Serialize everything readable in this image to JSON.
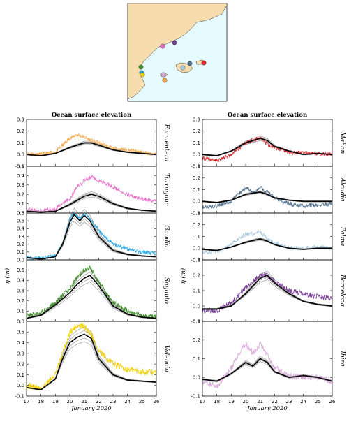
{
  "map": {
    "land_color": "#f7dcae",
    "sea_color": "#e6fbff",
    "stations": [
      {
        "name": "Formentera",
        "color": "#f5a84a"
      },
      {
        "name": "Tarragona",
        "color": "#e870c8"
      },
      {
        "name": "Gandia",
        "color": "#29a7e0"
      },
      {
        "name": "Sagunto",
        "color": "#3f8f2c"
      },
      {
        "name": "Valencia",
        "color": "#f0d000"
      },
      {
        "name": "Mahon",
        "color": "#d8242a"
      },
      {
        "name": "Alcudia",
        "color": "#52708c"
      },
      {
        "name": "Palma",
        "color": "#a8c8e0"
      },
      {
        "name": "Barcelona",
        "color": "#7a3f96"
      },
      {
        "name": "Ibiza",
        "color": "#d8a8d8"
      }
    ]
  },
  "chart_data": {
    "type": "line",
    "columns": [
      {
        "title": "Ocean surface elevation",
        "panels": [
          {
            "station": "Formentera",
            "color": "#f5a84a",
            "ylim": [
              -0.1,
              0.3
            ],
            "yticks": [
              -0.1,
              0.0,
              0.1,
              0.2,
              0.3
            ]
          },
          {
            "station": "Tarragona",
            "color": "#e870c8",
            "ylim": [
              0.0,
              0.5
            ],
            "yticks": [
              0.0,
              0.1,
              0.2,
              0.3,
              0.4,
              0.5
            ]
          },
          {
            "station": "Gandia",
            "color": "#29a7e0",
            "ylim": [
              0.0,
              0.6
            ],
            "yticks": [
              0.0,
              0.1,
              0.2,
              0.3,
              0.4,
              0.5,
              0.6
            ]
          },
          {
            "station": "Sagunto",
            "color": "#3f8f2c",
            "ylim": [
              0.0,
              0.6
            ],
            "yticks": [
              0.0,
              0.1,
              0.2,
              0.3,
              0.4,
              0.5
            ]
          },
          {
            "station": "Valencia",
            "color": "#f0d000",
            "ylim": [
              -0.1,
              0.6
            ],
            "yticks": [
              -0.1,
              0.0,
              0.1,
              0.2,
              0.3,
              0.4,
              0.5
            ]
          }
        ]
      },
      {
        "title": "Ocean surface elevation",
        "panels": [
          {
            "station": "Mahon",
            "color": "#d8242a",
            "ylim": [
              -0.1,
              0.3
            ],
            "yticks": [
              -0.1,
              0.0,
              0.1,
              0.2,
              0.3
            ]
          },
          {
            "station": "Alcudia",
            "color": "#52708c",
            "ylim": [
              -0.1,
              0.3
            ],
            "yticks": [
              -0.1,
              0.0,
              0.1,
              0.2,
              0.3
            ]
          },
          {
            "station": "Palma",
            "color": "#a8c8e0",
            "ylim": [
              -0.1,
              0.3
            ],
            "yticks": [
              -0.1,
              0.0,
              0.1,
              0.2,
              0.3
            ]
          },
          {
            "station": "Barcelona",
            "color": "#7a3f96",
            "ylim": [
              -0.1,
              0.3
            ],
            "yticks": [
              -0.1,
              0.0,
              0.1,
              0.2,
              0.3
            ]
          },
          {
            "station": "Ibiza",
            "color": "#d8a8d8",
            "ylim": [
              -0.1,
              0.3
            ],
            "yticks": [
              -0.1,
              0.0,
              0.1,
              0.2,
              0.3
            ]
          }
        ]
      }
    ],
    "x_ticks": [
      17,
      18,
      19,
      20,
      21,
      22,
      23,
      24,
      25,
      26
    ],
    "x_range": [
      17,
      26
    ],
    "xlabel": "January 2020",
    "ylabel": "η (m)",
    "series_style": {
      "observed": "station color",
      "model_ensemble": "#888888",
      "model_best": "#000000"
    },
    "curves": {
      "Formentera": {
        "obs": [
          [
            17,
            0.01
          ],
          [
            18,
            0.0
          ],
          [
            19,
            0.02
          ],
          [
            20,
            0.14
          ],
          [
            20.5,
            0.17
          ],
          [
            21,
            0.15
          ],
          [
            21.5,
            0.12
          ],
          [
            22,
            0.1
          ],
          [
            23,
            0.05
          ],
          [
            24,
            0.04
          ],
          [
            25,
            0.02
          ],
          [
            26,
            0.0
          ]
        ],
        "model": [
          [
            17,
            0.0
          ],
          [
            18,
            -0.01
          ],
          [
            19,
            0.01
          ],
          [
            20,
            0.06
          ],
          [
            21,
            0.1
          ],
          [
            21.5,
            0.1
          ],
          [
            22,
            0.08
          ],
          [
            23,
            0.04
          ],
          [
            24,
            0.02
          ],
          [
            25,
            0.01
          ],
          [
            26,
            0.0
          ]
        ]
      },
      "Tarragona": {
        "obs": [
          [
            17,
            0.04
          ],
          [
            18,
            0.02
          ],
          [
            19,
            0.05
          ],
          [
            20,
            0.15
          ],
          [
            20.5,
            0.28
          ],
          [
            21,
            0.35
          ],
          [
            21.5,
            0.39
          ],
          [
            22,
            0.35
          ],
          [
            23,
            0.28
          ],
          [
            24,
            0.2
          ],
          [
            25,
            0.15
          ],
          [
            26,
            0.13
          ]
        ],
        "model": [
          [
            17,
            0.02
          ],
          [
            18,
            0.01
          ],
          [
            19,
            0.02
          ],
          [
            20,
            0.09
          ],
          [
            21,
            0.18
          ],
          [
            21.5,
            0.2
          ],
          [
            22,
            0.18
          ],
          [
            23,
            0.1
          ],
          [
            24,
            0.05
          ],
          [
            25,
            0.03
          ],
          [
            26,
            0.02
          ]
        ]
      },
      "Gandia": {
        "obs": [
          [
            17,
            0.03
          ],
          [
            18,
            0.02
          ],
          [
            19,
            0.05
          ],
          [
            19.5,
            0.2
          ],
          [
            20,
            0.52
          ],
          [
            20.3,
            0.61
          ],
          [
            20.7,
            0.52
          ],
          [
            21,
            0.59
          ],
          [
            21.4,
            0.52
          ],
          [
            22,
            0.38
          ],
          [
            23,
            0.2
          ],
          [
            24,
            0.14
          ],
          [
            25,
            0.1
          ],
          [
            26,
            0.08
          ]
        ],
        "model": [
          [
            17,
            0.03
          ],
          [
            18,
            0.01
          ],
          [
            19,
            0.04
          ],
          [
            19.5,
            0.2
          ],
          [
            20,
            0.48
          ],
          [
            20.3,
            0.58
          ],
          [
            20.7,
            0.5
          ],
          [
            21,
            0.57
          ],
          [
            21.4,
            0.5
          ],
          [
            22,
            0.3
          ],
          [
            23,
            0.12
          ],
          [
            24,
            0.07
          ],
          [
            25,
            0.05
          ],
          [
            26,
            0.04
          ]
        ]
      },
      "Sagunto": {
        "obs": [
          [
            17,
            0.05
          ],
          [
            18,
            0.08
          ],
          [
            19,
            0.18
          ],
          [
            20,
            0.32
          ],
          [
            20.5,
            0.42
          ],
          [
            21,
            0.5
          ],
          [
            21.4,
            0.53
          ],
          [
            22,
            0.38
          ],
          [
            23,
            0.18
          ],
          [
            24,
            0.1
          ],
          [
            25,
            0.06
          ],
          [
            26,
            0.04
          ]
        ],
        "model": [
          [
            17,
            0.03
          ],
          [
            18,
            0.06
          ],
          [
            19,
            0.16
          ],
          [
            20,
            0.28
          ],
          [
            20.5,
            0.36
          ],
          [
            21,
            0.42
          ],
          [
            21.4,
            0.45
          ],
          [
            22,
            0.35
          ],
          [
            23,
            0.15
          ],
          [
            24,
            0.07
          ],
          [
            25,
            0.04
          ],
          [
            26,
            0.03
          ]
        ]
      },
      "Valencia": {
        "obs": [
          [
            17,
            0.0
          ],
          [
            18,
            -0.03
          ],
          [
            19,
            0.1
          ],
          [
            19.5,
            0.3
          ],
          [
            20,
            0.5
          ],
          [
            20.5,
            0.56
          ],
          [
            21,
            0.55
          ],
          [
            21.5,
            0.48
          ],
          [
            22,
            0.32
          ],
          [
            23,
            0.2
          ],
          [
            24,
            0.15
          ],
          [
            25,
            0.13
          ],
          [
            26,
            0.12
          ]
        ],
        "model": [
          [
            17,
            -0.02
          ],
          [
            18,
            -0.04
          ],
          [
            19,
            0.06
          ],
          [
            19.5,
            0.25
          ],
          [
            20,
            0.4
          ],
          [
            20.5,
            0.45
          ],
          [
            21,
            0.48
          ],
          [
            21.5,
            0.44
          ],
          [
            22,
            0.25
          ],
          [
            23,
            0.1
          ],
          [
            24,
            0.05
          ],
          [
            25,
            0.04
          ],
          [
            26,
            0.03
          ]
        ]
      },
      "Mahon": {
        "obs": [
          [
            17,
            -0.03
          ],
          [
            18,
            -0.05
          ],
          [
            19,
            0.0
          ],
          [
            20,
            0.1
          ],
          [
            21,
            0.14
          ],
          [
            21.4,
            0.1
          ],
          [
            22,
            0.06
          ],
          [
            23,
            0.02
          ],
          [
            24,
            0.01
          ],
          [
            25,
            0.01
          ],
          [
            26,
            0.0
          ]
        ],
        "model": [
          [
            17,
            0.0
          ],
          [
            18,
            -0.01
          ],
          [
            19,
            0.03
          ],
          [
            20,
            0.1
          ],
          [
            21,
            0.14
          ],
          [
            21.5,
            0.12
          ],
          [
            22,
            0.07
          ],
          [
            23,
            0.03
          ],
          [
            24,
            0.0
          ],
          [
            25,
            0.01
          ],
          [
            26,
            0.0
          ]
        ]
      },
      "Alcudia": {
        "obs": [
          [
            17,
            -0.05
          ],
          [
            18,
            -0.04
          ],
          [
            19,
            0.0
          ],
          [
            20,
            0.12
          ],
          [
            20.5,
            0.07
          ],
          [
            21,
            0.12
          ],
          [
            21.5,
            0.08
          ],
          [
            22,
            0.03
          ],
          [
            23,
            -0.02
          ],
          [
            24,
            -0.04
          ],
          [
            25,
            -0.03
          ],
          [
            26,
            -0.02
          ]
        ],
        "model": [
          [
            17,
            0.0
          ],
          [
            18,
            -0.01
          ],
          [
            19,
            0.01
          ],
          [
            20,
            0.06
          ],
          [
            21,
            0.08
          ],
          [
            21.5,
            0.06
          ],
          [
            22,
            0.03
          ],
          [
            23,
            0.01
          ],
          [
            24,
            0.0
          ],
          [
            25,
            0.0
          ],
          [
            26,
            0.0
          ]
        ]
      },
      "Palma": {
        "obs": [
          [
            17,
            -0.04
          ],
          [
            18,
            -0.03
          ],
          [
            19,
            0.03
          ],
          [
            20,
            0.12
          ],
          [
            20.5,
            0.12
          ],
          [
            21,
            0.14
          ],
          [
            21.5,
            0.08
          ],
          [
            22,
            0.04
          ],
          [
            23,
            0.0
          ],
          [
            24,
            0.0
          ],
          [
            25,
            0.01
          ],
          [
            26,
            0.0
          ]
        ],
        "model": [
          [
            17,
            -0.01
          ],
          [
            18,
            -0.02
          ],
          [
            19,
            0.01
          ],
          [
            20,
            0.05
          ],
          [
            21,
            0.08
          ],
          [
            21.5,
            0.06
          ],
          [
            22,
            0.03
          ],
          [
            23,
            0.0
          ],
          [
            24,
            -0.01
          ],
          [
            25,
            0.0
          ],
          [
            26,
            0.0
          ]
        ]
      },
      "Barcelona": {
        "obs": [
          [
            17,
            -0.03
          ],
          [
            18,
            -0.03
          ],
          [
            19,
            0.02
          ],
          [
            20,
            0.12
          ],
          [
            21,
            0.2
          ],
          [
            21.5,
            0.2
          ],
          [
            22,
            0.16
          ],
          [
            23,
            0.1
          ],
          [
            24,
            0.08
          ],
          [
            25,
            0.06
          ],
          [
            26,
            0.05
          ]
        ],
        "model": [
          [
            17,
            -0.02
          ],
          [
            18,
            -0.02
          ],
          [
            19,
            0.0
          ],
          [
            20,
            0.08
          ],
          [
            21,
            0.18
          ],
          [
            21.5,
            0.2
          ],
          [
            22,
            0.15
          ],
          [
            23,
            0.08
          ],
          [
            24,
            0.03
          ],
          [
            25,
            0.01
          ],
          [
            26,
            0.0
          ]
        ]
      },
      "Ibiza": {
        "obs": [
          [
            17,
            -0.02
          ],
          [
            18,
            -0.05
          ],
          [
            19,
            0.05
          ],
          [
            20,
            0.18
          ],
          [
            20.5,
            0.13
          ],
          [
            21,
            0.18
          ],
          [
            21.5,
            0.12
          ],
          [
            22,
            0.05
          ],
          [
            23,
            0.01
          ],
          [
            24,
            0.0
          ],
          [
            25,
            0.0
          ],
          [
            26,
            -0.02
          ]
        ],
        "model": [
          [
            17,
            -0.01
          ],
          [
            18,
            -0.02
          ],
          [
            19,
            0.02
          ],
          [
            20,
            0.08
          ],
          [
            20.5,
            0.06
          ],
          [
            21,
            0.1
          ],
          [
            21.5,
            0.08
          ],
          [
            22,
            0.03
          ],
          [
            23,
            0.0
          ],
          [
            24,
            0.01
          ],
          [
            25,
            0.0
          ],
          [
            26,
            -0.02
          ]
        ]
      }
    }
  }
}
